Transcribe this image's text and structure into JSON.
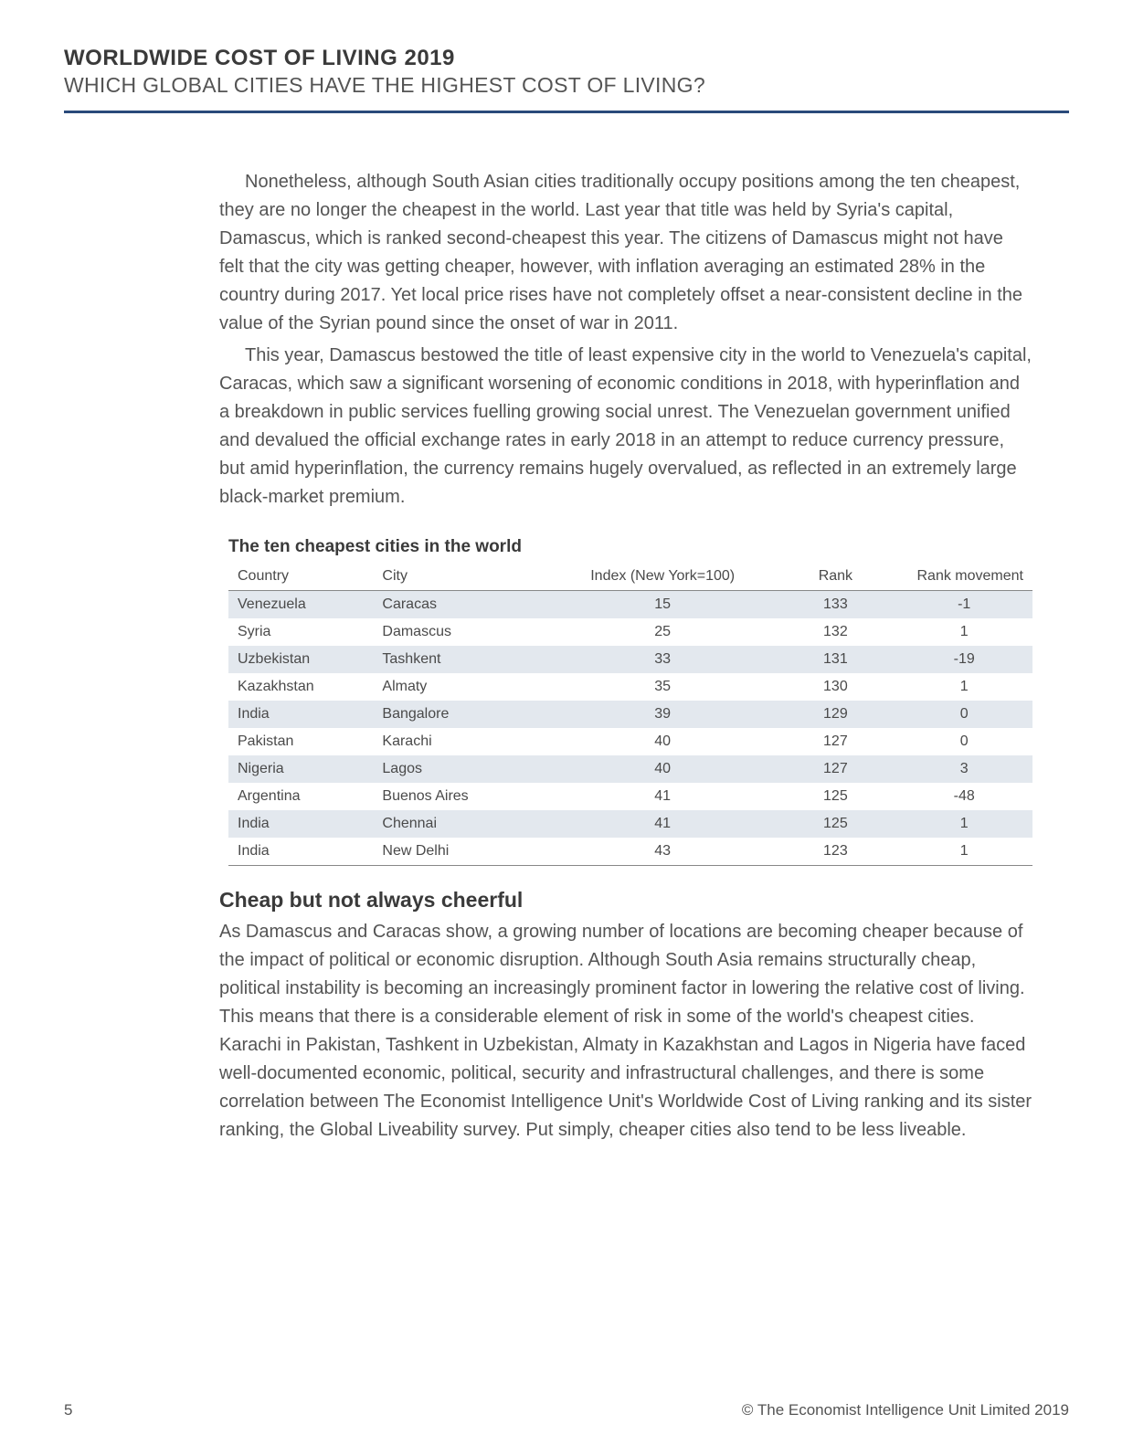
{
  "colors": {
    "header_border": "#2a4a7a",
    "table_header_border": "#888888",
    "table_bottom_border": "#888888",
    "row_alt_bg": "#e3e8ee",
    "row_bg": "#ffffff",
    "text": "#545454",
    "heading": "#3a3a3a"
  },
  "header": {
    "title": "WORLDWIDE COST OF LIVING 2019",
    "subtitle": "WHICH GLOBAL CITIES HAVE THE HIGHEST COST OF LIVING?"
  },
  "paragraphs": [
    "Nonetheless, although South Asian cities traditionally occupy positions among the ten cheapest, they are no longer the cheapest in the world. Last year that title was held by Syria's capital, Damascus, which is ranked second-cheapest this year. The citizens of Damascus might not have felt that the city was getting cheaper, however, with inflation averaging an estimated 28% in the country during 2017. Yet local price rises have not completely offset a near-consistent decline in the value of the Syrian pound since the onset of war in 2011.",
    "This year, Damascus bestowed the title of least expensive city in the world to Venezuela's capital, Caracas, which saw a significant worsening of economic conditions in 2018, with hyperinflation and a breakdown in public services fuelling growing social unrest. The Venezuelan government unified and devalued the official exchange rates in early 2018 in an attempt to reduce currency pressure, but amid hyperinflation, the currency remains hugely overvalued, as reflected in an extremely large black-market premium."
  ],
  "table": {
    "title": "The ten cheapest cities in the world",
    "columns": [
      "Country",
      "City",
      "Index (New York=100)",
      "Rank",
      "Rank movement"
    ],
    "col_align": [
      "left",
      "left",
      "center",
      "center",
      "center"
    ],
    "col_widths": [
      "18%",
      "22%",
      "28%",
      "15%",
      "17%"
    ],
    "rows": [
      [
        "Venezuela",
        "Caracas",
        "15",
        "133",
        "-1"
      ],
      [
        "Syria",
        "Damascus",
        "25",
        "132",
        "1"
      ],
      [
        "Uzbekistan",
        "Tashkent",
        "33",
        "131",
        "-19"
      ],
      [
        "Kazakhstan",
        "Almaty",
        "35",
        "130",
        "1"
      ],
      [
        "India",
        "Bangalore",
        "39",
        "129",
        "0"
      ],
      [
        "Pakistan",
        "Karachi",
        "40",
        "127",
        "0"
      ],
      [
        "Nigeria",
        "Lagos",
        "40",
        "127",
        "3"
      ],
      [
        "Argentina",
        "Buenos Aires",
        "41",
        "125",
        "-48"
      ],
      [
        "India",
        "Chennai",
        "41",
        "125",
        "1"
      ],
      [
        "India",
        "New Delhi",
        "43",
        "123",
        "1"
      ]
    ]
  },
  "section": {
    "heading": "Cheap but not always cheerful",
    "body": "As Damascus and Caracas show, a growing number of locations are becoming cheaper because of the impact of political or economic disruption. Although South Asia remains structurally cheap, political instability is becoming an increasingly prominent factor in lowering the relative cost of living. This means that there is a considerable element of risk in some of the world's cheapest cities. Karachi in Pakistan, Tashkent in Uzbekistan, Almaty in Kazakhstan and Lagos in Nigeria have faced well-documented economic, political, security and infrastructural challenges, and there is some correlation between The Economist Intelligence Unit's Worldwide Cost of Living ranking and its sister ranking, the Global Liveability survey. Put simply, cheaper cities also tend to be less liveable."
  },
  "footer": {
    "page": "5",
    "copyright": "© The Economist Intelligence Unit Limited 2019"
  }
}
